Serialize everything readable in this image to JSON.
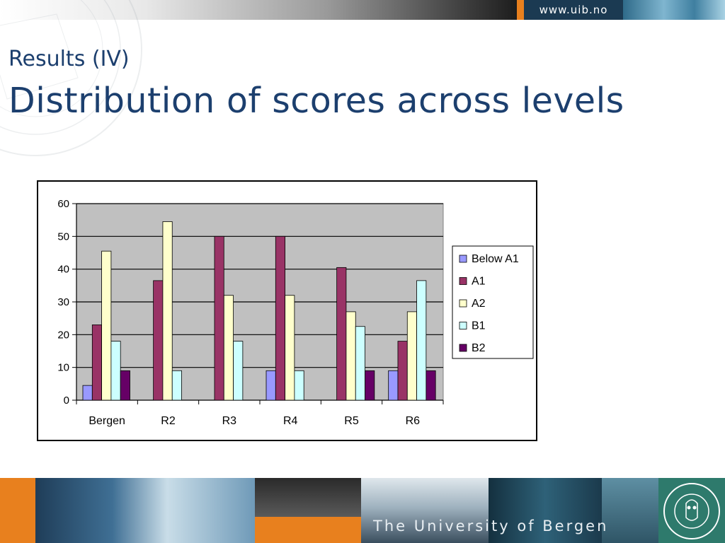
{
  "header": {
    "url": "www.uib.no"
  },
  "slide": {
    "subtitle": "Results (IV)",
    "title": "Distribution of  scores across levels"
  },
  "footer": {
    "university": "The University of Bergen"
  },
  "colors": {
    "title": "#1c3f6e",
    "plot_background": "#c0c0c0",
    "below_a1": "#9999ff",
    "a1": "#993366",
    "a2": "#ffffcc",
    "b1": "#ccffff",
    "b2": "#660066"
  },
  "chart_data": {
    "type": "bar",
    "title": "",
    "xlabel": "",
    "ylabel": "",
    "ylim": [
      0,
      60
    ],
    "yticks": [
      0,
      10,
      20,
      30,
      40,
      50,
      60
    ],
    "grid": true,
    "legend_position": "right",
    "categories": [
      "Bergen",
      "R2",
      "R3",
      "R4",
      "R5",
      "R6"
    ],
    "series": [
      {
        "name": "Below A1",
        "color": "#9999ff",
        "values": [
          4.5,
          0,
          0,
          9,
          0,
          9
        ]
      },
      {
        "name": "A1",
        "color": "#993366",
        "values": [
          23,
          36.5,
          50,
          50,
          40.5,
          18
        ]
      },
      {
        "name": "A2",
        "color": "#ffffcc",
        "values": [
          45.5,
          54.5,
          32,
          32,
          27,
          27
        ]
      },
      {
        "name": "B1",
        "color": "#ccffff",
        "values": [
          18,
          9,
          18,
          9,
          22.5,
          36.5
        ]
      },
      {
        "name": "B2",
        "color": "#660066",
        "values": [
          9,
          0,
          0,
          0,
          9,
          9
        ]
      }
    ]
  }
}
